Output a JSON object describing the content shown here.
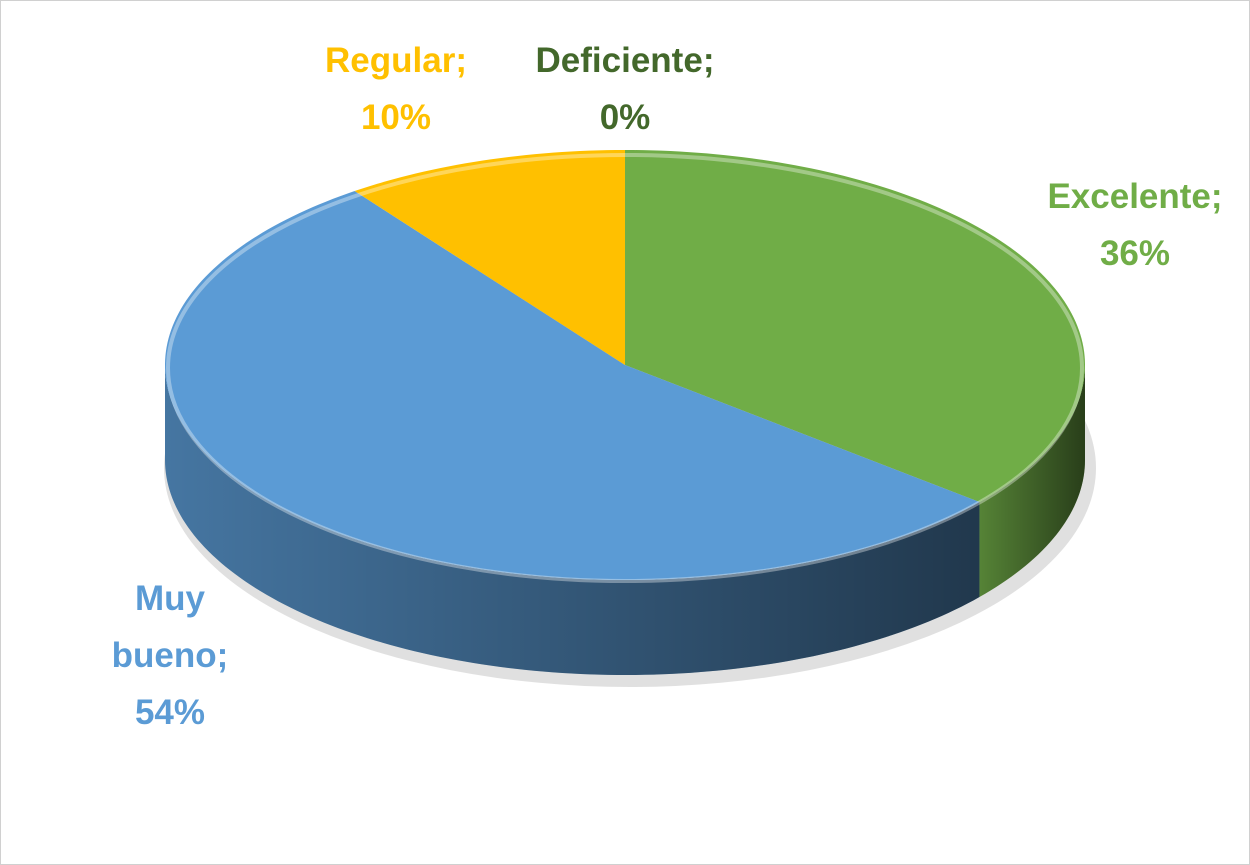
{
  "chart_data": {
    "type": "pie",
    "categories": [
      "Excelente",
      "Muy bueno",
      "Regular",
      "Deficiente"
    ],
    "values": [
      36,
      54,
      10,
      0
    ],
    "value_labels": [
      "36%",
      "54%",
      "10%",
      "0%"
    ],
    "label_separator": ";",
    "colors": [
      "#70ad47",
      "#5b9bd5",
      "#ffc000",
      "#43682b"
    ],
    "start_angle": 0,
    "direction": "clockwise",
    "three_d": true
  }
}
